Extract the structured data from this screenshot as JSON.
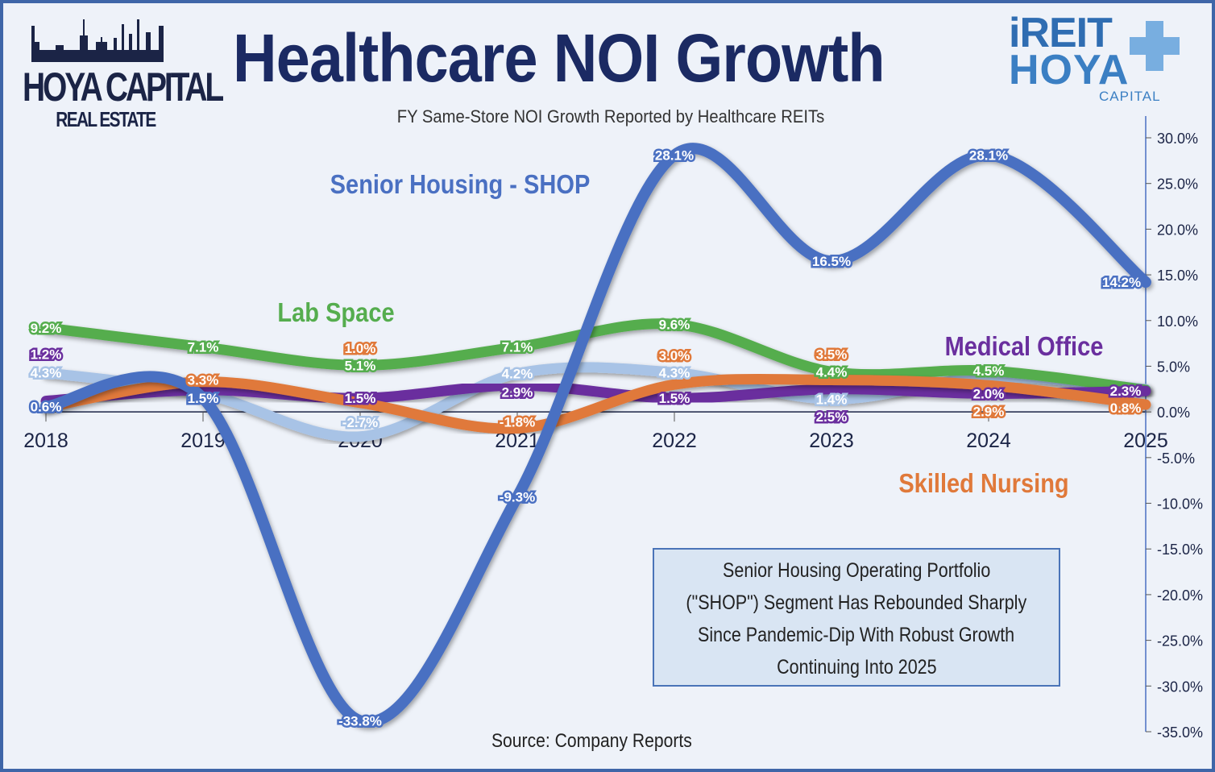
{
  "header": {
    "logo_left": {
      "main": "HOYA CAPITAL",
      "sub": "REAL ESTATE"
    },
    "logo_right": {
      "line1": "iREIT",
      "line2": "HOYA",
      "line3": "CAPITAL"
    }
  },
  "callout": [
    "Senior Housing Operating Portfolio",
    "(\"SHOP\")  Segment Has Rebounded Sharply",
    "Since Pandemic-Dip With Robust Growth",
    "Continuing Into 2025"
  ],
  "chart_data": {
    "type": "line",
    "title": "Healthcare NOI Growth",
    "subtitle": "FY Same-Store NOI Growth Reported by Healthcare REITs",
    "source": "Source: Company Reports",
    "x": [
      "2018",
      "2019",
      "2020",
      "2021",
      "2022",
      "2023",
      "2024",
      "2025"
    ],
    "ylim": [
      -35,
      30
    ],
    "y_axis_position": "right",
    "y_ticks": [
      "30.0%",
      "25.0%",
      "20.0%",
      "15.0%",
      "10.0%",
      "5.0%",
      "0.0%",
      "-5.0%",
      "-10.0%",
      "-15.0%",
      "-20.0%",
      "-25.0%",
      "-30.0%",
      "-35.0%"
    ],
    "grid": false,
    "series": [
      {
        "name": "",
        "color": "#a8c3e6",
        "values": [
          4.3,
          2.0,
          -2.7,
          4.2,
          4.3,
          1.4,
          3.8,
          2.5
        ],
        "labels": [
          "4.3%",
          null,
          "-2.7%",
          "4.2%",
          "4.3%",
          "1.4%",
          null,
          null
        ]
      },
      {
        "name": "Lab Space",
        "color": "#55ad4e",
        "values": [
          9.2,
          7.1,
          5.1,
          7.1,
          9.6,
          4.4,
          4.5,
          2.4
        ],
        "labels": [
          "9.2%",
          "7.1%",
          "5.1%",
          "7.1%",
          "9.6%",
          "4.4%",
          "4.5%",
          null
        ]
      },
      {
        "name": "Medical Office",
        "color": "#6a2f9e",
        "values": [
          1.2,
          2.4,
          1.5,
          2.9,
          1.5,
          2.5,
          2.0,
          2.3
        ],
        "labels": [
          "1.2%",
          null,
          "1.5%",
          "2.9%",
          "1.5%",
          "2.5%",
          "2.0%",
          "2.3%"
        ]
      },
      {
        "name": "Skilled Nursing",
        "color": "#e0793a",
        "values": [
          0.5,
          3.3,
          1.0,
          -1.8,
          3.0,
          3.5,
          2.9,
          0.8
        ],
        "labels": [
          null,
          "3.3%",
          "1.0%",
          "-1.8%",
          "3.0%",
          "3.5%",
          "2.9%",
          "0.8%"
        ]
      },
      {
        "name": "Senior Housing - SHOP",
        "color": "#4a70c2",
        "values": [
          0.6,
          1.5,
          -33.8,
          -9.3,
          28.1,
          16.5,
          28.1,
          14.2
        ],
        "labels": [
          "0.6%",
          "1.5%",
          "-33.8%",
          "-9.3%",
          "28.1%",
          "16.5%",
          "28.1%",
          "14.2%"
        ]
      }
    ]
  }
}
